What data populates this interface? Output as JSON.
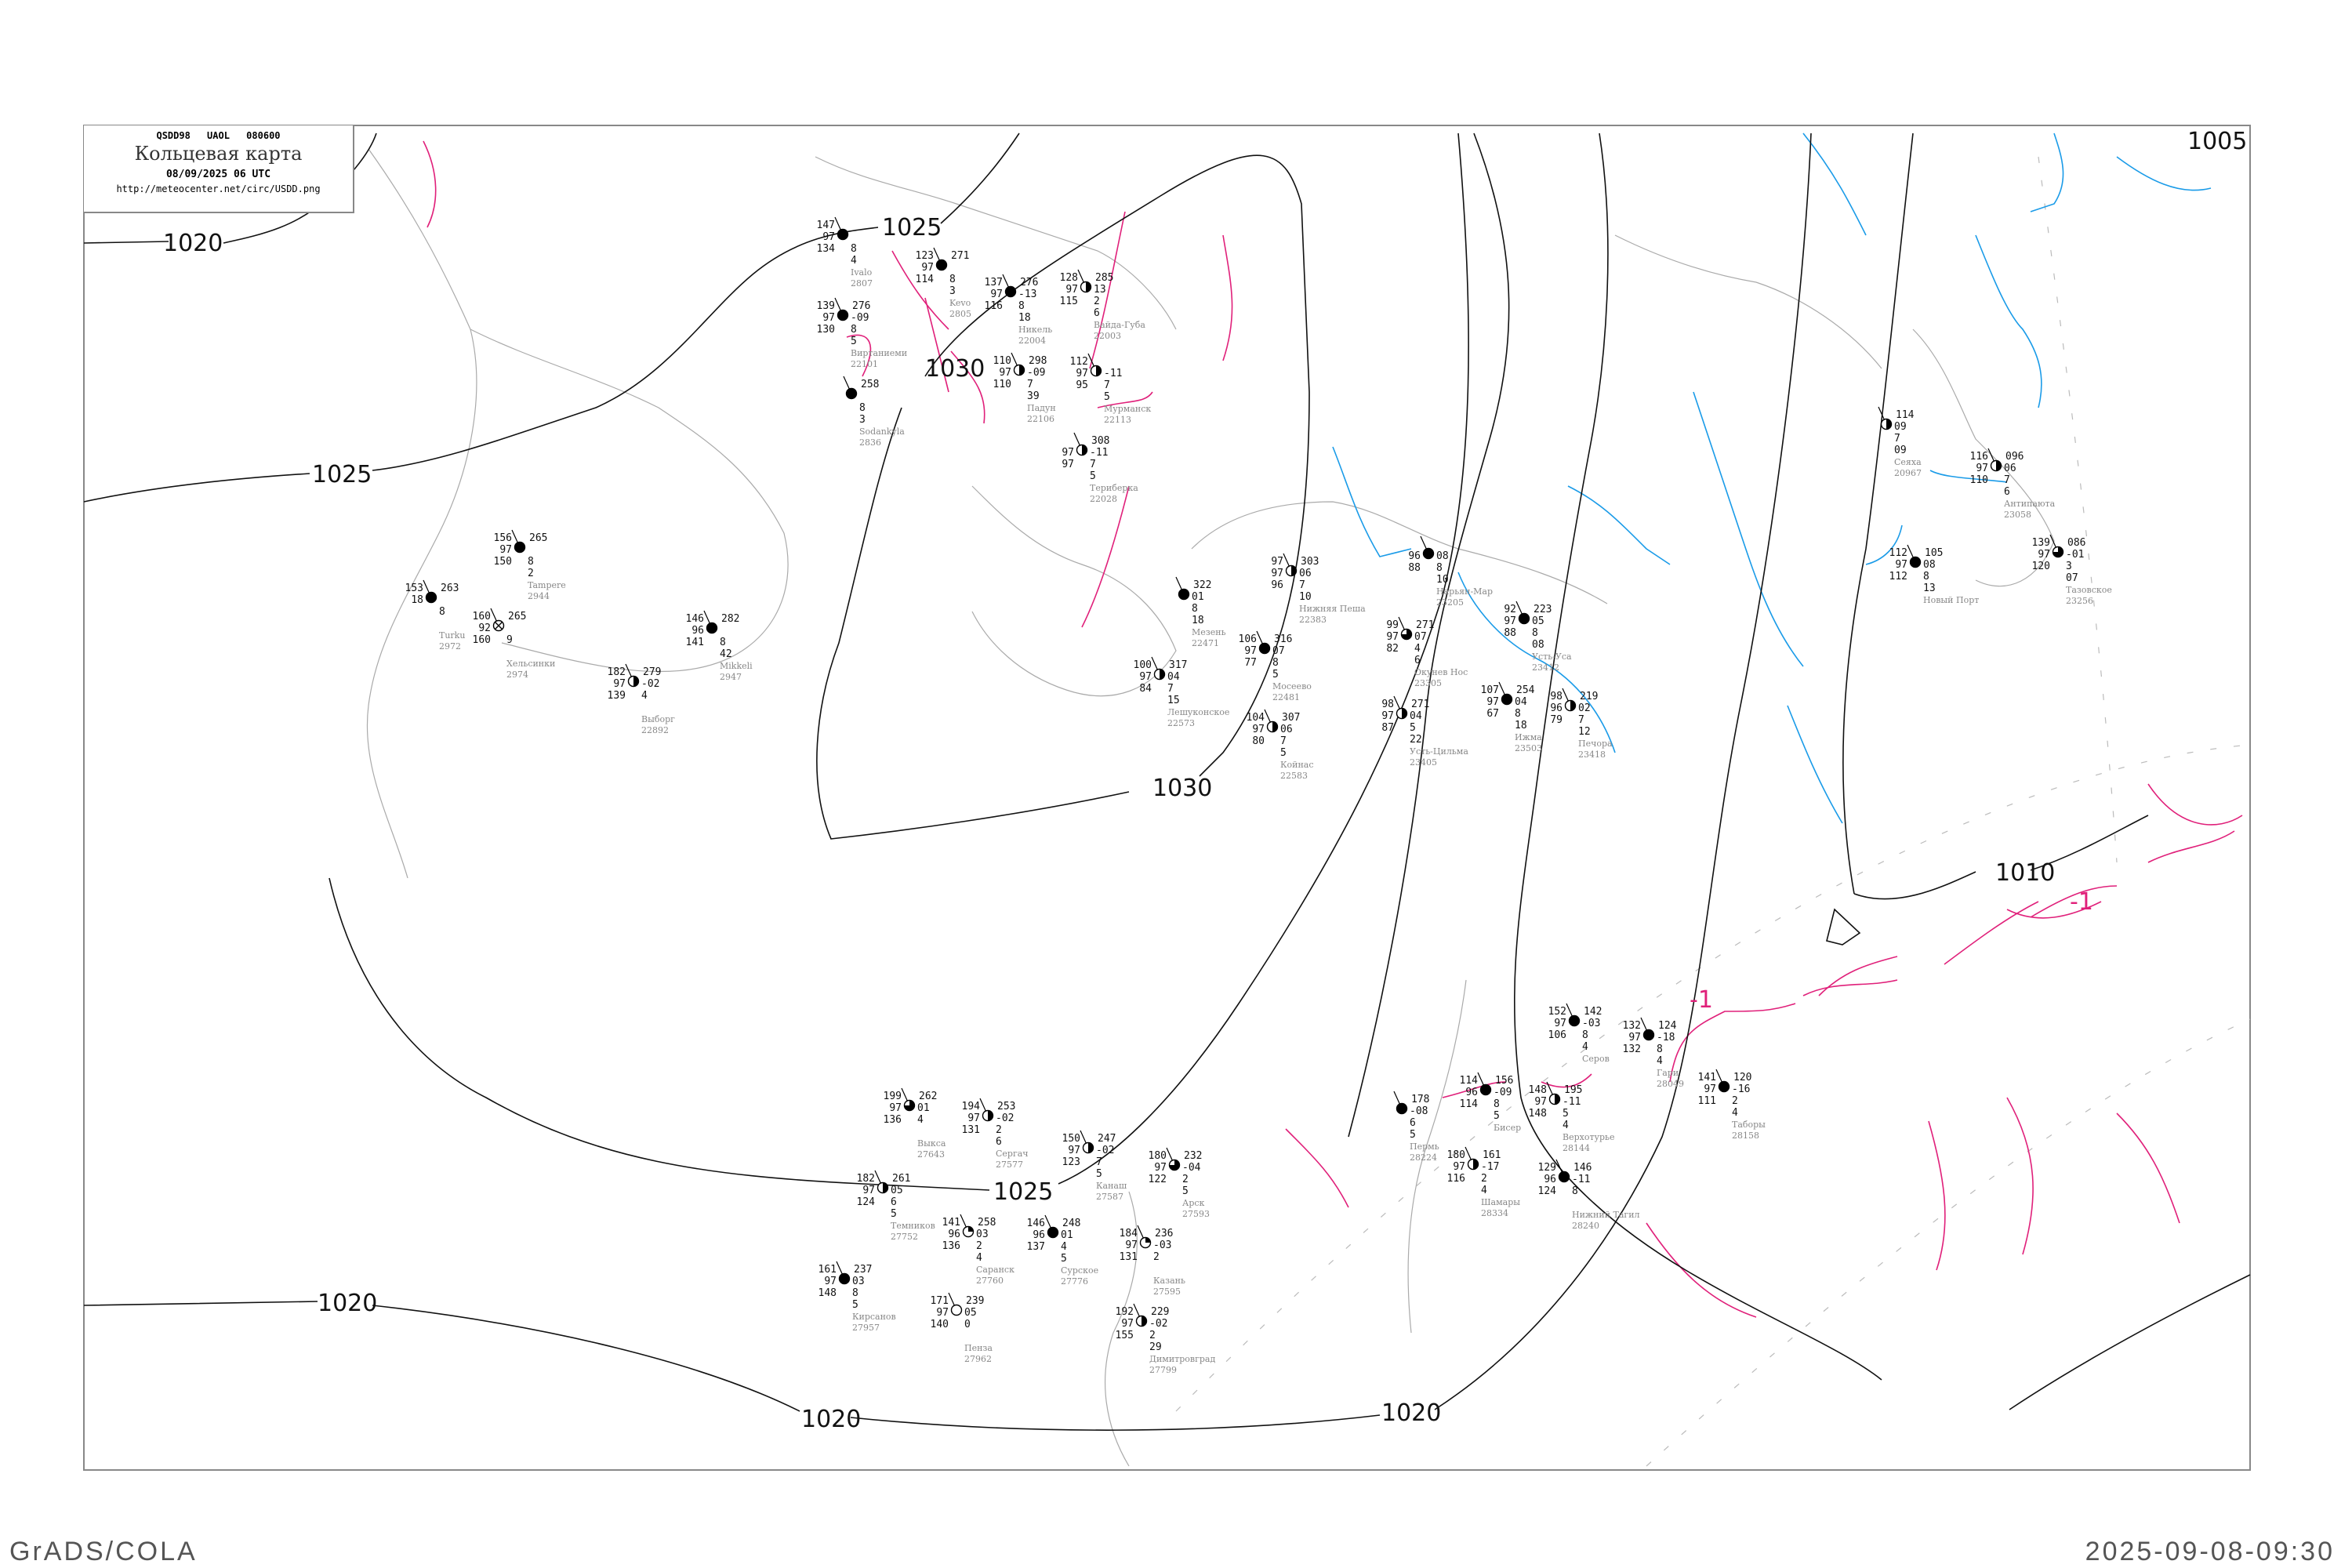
{
  "header": {
    "code_line": "QSDD98 UAOL 080600",
    "title": "Кольцевая карта",
    "date": "08/09/2025 06 UTC",
    "url": "http://meteocenter.net/circ/USDD.png"
  },
  "footer": {
    "left": "GrADS/COLA",
    "right": "2025-09-08-09:30"
  },
  "colors": {
    "isobar": "#111111",
    "isotherm": "#e0207a",
    "river": "#1a9be8",
    "coast": "#aaaaaa",
    "precip_marker": "#00c040",
    "fog_marker": "#ffff99"
  },
  "isobar_labels": [
    "1020",
    "1025",
    "1025",
    "1030",
    "1030",
    "1025",
    "1020",
    "1020",
    "1020",
    "1010",
    "1005"
  ],
  "isotherm_labels": [
    "-1",
    "-1"
  ],
  "stations": [
    {
      "name": "Kevo",
      "id": "2805",
      "cover": "full",
      "t": "123",
      "m": "97",
      "b": "114",
      "p": "271",
      "tend": "",
      "r1": "8",
      "r2": "3"
    },
    {
      "name": "Никель",
      "id": "22004",
      "cover": "full",
      "t": "137",
      "m": "97",
      "b": "116",
      "p": "276",
      "tend": "-13",
      "r1": "8",
      "r2": "18"
    },
    {
      "name": "Вайда-Губа",
      "id": "22003",
      "cover": "half",
      "t": "128",
      "m": "97",
      "b": "115",
      "p": "285",
      "tend": "13",
      "r1": "2",
      "r2": "6"
    },
    {
      "name": "Виртаниеми",
      "id": "22101",
      "cover": "full",
      "t": "139",
      "m": "97",
      "b": "130",
      "p": "276",
      "tend": "-09",
      "r1": "8",
      "r2": "5"
    },
    {
      "name": "Ivalo",
      "id": "2807",
      "cover": "full",
      "t": "147",
      "m": "97",
      "b": "134",
      "p": "",
      "tend": "",
      "r1": "8",
      "r2": "4"
    },
    {
      "name": "Sodankyla",
      "id": "2836",
      "cover": "full",
      "t": "",
      "m": "",
      "b": "",
      "p": "258",
      "tend": "",
      "r1": "8",
      "r2": "3"
    },
    {
      "name": "Падун",
      "id": "22106",
      "cover": "half",
      "t": "110",
      "m": "97",
      "b": "110",
      "p": "298",
      "tend": "-09",
      "r1": "7",
      "r2": "39"
    },
    {
      "name": "Мурманск",
      "id": "22113",
      "cover": "half",
      "t": "112",
      "m": "97",
      "b": "95",
      "p": "",
      "tend": "-11",
      "r1": "7",
      "r2": "5"
    },
    {
      "name": "Териберка",
      "id": "22028",
      "cover": "half",
      "t": "",
      "m": "97",
      "b": "97",
      "p": "308",
      "tend": "-11",
      "r1": "7",
      "r2": "5"
    },
    {
      "name": "Нижняя Пеша",
      "id": "22383",
      "cover": "half",
      "t": "97",
      "m": "97",
      "b": "96",
      "p": "303",
      "tend": "06",
      "r1": "7",
      "r2": "10"
    },
    {
      "name": "Мезень",
      "id": "22471",
      "cover": "full",
      "t": "",
      "m": "",
      "b": "",
      "p": "322",
      "tend": "01",
      "r1": "8",
      "r2": "18"
    },
    {
      "name": "Мосеево",
      "id": "22481",
      "cover": "full",
      "t": "106",
      "m": "97",
      "b": "77",
      "p": "316",
      "tend": "07",
      "r1": "8",
      "r2": "5"
    },
    {
      "name": "Лешуконское",
      "id": "22573",
      "cover": "half",
      "t": "100",
      "m": "97",
      "b": "84",
      "p": "317",
      "tend": "04",
      "r1": "7",
      "r2": "15"
    },
    {
      "name": "Койнас",
      "id": "22583",
      "cover": "half",
      "t": "104",
      "m": "97",
      "b": "80",
      "p": "307",
      "tend": "06",
      "r1": "7",
      "r2": "5"
    },
    {
      "name": "Нарьян-Мар",
      "id": "23205",
      "cover": "full",
      "t": "",
      "m": "96",
      "b": "88",
      "p": "",
      "tend": "08",
      "r1": "8",
      "r2": "10"
    },
    {
      "name": "Окунев Нос",
      "id": "23305",
      "cover": "three-quarter",
      "t": "99",
      "m": "97",
      "b": "82",
      "p": "271",
      "tend": "07",
      "r1": "4",
      "r2": "6"
    },
    {
      "name": "Усть-Цильма",
      "id": "23405",
      "cover": "half",
      "t": "98",
      "m": "97",
      "b": "87",
      "p": "271",
      "tend": "04",
      "r1": "5",
      "r2": "22"
    },
    {
      "name": "Ижма",
      "id": "23503",
      "cover": "full",
      "t": "107",
      "m": "97",
      "b": "67",
      "p": "254",
      "tend": "04",
      "r1": "8",
      "r2": "18"
    },
    {
      "name": "Усть-Уса",
      "id": "23412",
      "cover": "full",
      "t": "92",
      "m": "97",
      "b": "88",
      "p": "223",
      "tend": "05",
      "r1": "8",
      "r2": "08"
    },
    {
      "name": "Печора",
      "id": "23418",
      "cover": "half",
      "t": "98",
      "m": "96",
      "b": "79",
      "p": "219",
      "tend": "02",
      "r1": "7",
      "r2": "12"
    },
    {
      "name": "Саранск",
      "id": "27760",
      "cover": "quarter",
      "t": "141",
      "m": "96",
      "b": "136",
      "p": "258",
      "tend": "03",
      "r1": "2",
      "r2": "4"
    },
    {
      "name": "Сурское",
      "id": "27776",
      "cover": "full",
      "t": "146",
      "m": "96",
      "b": "137",
      "p": "248",
      "tend": "01",
      "r1": "4",
      "r2": "5"
    },
    {
      "name": "Сергач",
      "id": "27577",
      "cover": "half",
      "t": "194",
      "m": "97",
      "b": "131",
      "p": "253",
      "tend": "-02",
      "r1": "2",
      "r2": "6"
    },
    {
      "name": "Канаш",
      "id": "27587",
      "cover": "half",
      "t": "150",
      "m": "97",
      "b": "123",
      "p": "247",
      "tend": "-02",
      "r1": "7",
      "r2": "5"
    },
    {
      "name": "Арск",
      "id": "27593",
      "cover": "three-quarter",
      "t": "180",
      "m": "97",
      "b": "122",
      "p": "232",
      "tend": "-04",
      "r1": "2",
      "r2": "5"
    },
    {
      "name": "Казань",
      "id": "27595",
      "cover": "quarter",
      "t": "184",
      "m": "97",
      "b": "131",
      "p": "236",
      "tend": "-03",
      "r1": "2",
      "r2": ""
    },
    {
      "name": "Темников",
      "id": "27752",
      "cover": "half",
      "t": "182",
      "m": "97",
      "b": "124",
      "p": "261",
      "tend": "05",
      "r1": "6",
      "r2": "5"
    },
    {
      "name": "Пенза",
      "id": "27962",
      "cover": "empty",
      "t": "171",
      "m": "97",
      "b": "140",
      "p": "239",
      "tend": "05",
      "r1": "0",
      "r2": ""
    },
    {
      "name": "Кирсанов",
      "id": "27957",
      "cover": "full",
      "t": "161",
      "m": "97",
      "b": "148",
      "p": "237",
      "tend": "03",
      "r1": "8",
      "r2": "5"
    },
    {
      "name": "Димитровград",
      "id": "27799",
      "cover": "half",
      "t": "192",
      "m": "97",
      "b": "155",
      "p": "229",
      "tend": "-02",
      "r1": "2",
      "r2": "29"
    },
    {
      "name": "Выкса",
      "id": "27643",
      "cover": "three-quarter",
      "t": "199",
      "m": "97",
      "b": "136",
      "p": "262",
      "tend": "01",
      "r1": "4",
      "r2": ""
    },
    {
      "name": "Хельсинки",
      "id": "2974",
      "cover": "obscured",
      "t": "160",
      "m": "92",
      "b": "160",
      "p": "265",
      "tend": "",
      "r1": "9",
      "r2": ""
    },
    {
      "name": "Turku",
      "id": "2972",
      "cover": "full",
      "t": "153",
      "m": "18",
      "b": "",
      "p": "263",
      "tend": "",
      "r1": "8",
      "r2": ""
    },
    {
      "name": "Tampere",
      "id": "2944",
      "cover": "full",
      "t": "156",
      "m": "97",
      "b": "150",
      "p": "265",
      "tend": "",
      "r1": "8",
      "r2": "2"
    },
    {
      "name": "Выборг",
      "id": "22892",
      "cover": "half",
      "t": "182",
      "m": "97",
      "b": "139",
      "p": "279",
      "tend": "-02",
      "r1": "4",
      "r2": ""
    },
    {
      "name": "Mikkeli",
      "id": "2947",
      "cover": "full",
      "t": "146",
      "m": "96",
      "b": "141",
      "p": "282",
      "tend": "",
      "r1": "8",
      "r2": "42"
    },
    {
      "name": "Антипаюта",
      "id": "23058",
      "cover": "half",
      "t": "116",
      "m": "97",
      "b": "110",
      "p": "096",
      "tend": "06",
      "r1": "7",
      "r2": "6"
    },
    {
      "name": "Тазовское",
      "id": "23256",
      "cover": "three-quarter",
      "t": "139",
      "m": "97",
      "b": "120",
      "p": "086",
      "tend": "-01",
      "r1": "3",
      "r2": "07"
    },
    {
      "name": "Новый Порт",
      "id": "",
      "cover": "full",
      "t": "112",
      "m": "97",
      "b": "112",
      "p": "105",
      "tend": "08",
      "r1": "8",
      "r2": "13"
    },
    {
      "name": "Сеяха",
      "id": "20967",
      "cover": "half",
      "t": "",
      "m": "",
      "b": "",
      "p": "114",
      "tend": "09",
      "r1": "7",
      "r2": "09"
    },
    {
      "name": "Серов",
      "id": "",
      "cover": "full",
      "t": "152",
      "m": "97",
      "b": "106",
      "p": "142",
      "tend": "-03",
      "r1": "8",
      "r2": "4"
    },
    {
      "name": "Гари",
      "id": "28049",
      "cover": "full",
      "t": "132",
      "m": "97",
      "b": "132",
      "p": "124",
      "tend": "-18",
      "r1": "8",
      "r2": "4"
    },
    {
      "name": "Верхотурье",
      "id": "28144",
      "cover": "half",
      "t": "148",
      "m": "97",
      "b": "148",
      "p": "195",
      "tend": "-11",
      "r1": "5",
      "r2": "4"
    },
    {
      "name": "Бисер",
      "id": "",
      "cover": "full",
      "t": "114",
      "m": "96",
      "b": "114",
      "p": "156",
      "tend": "-09",
      "r1": "8",
      "r2": "5"
    },
    {
      "name": "Нижний Тагил",
      "id": "28240",
      "cover": "full",
      "t": "129",
      "m": "96",
      "b": "124",
      "p": "146",
      "tend": "-11",
      "r1": "8",
      "r2": ""
    },
    {
      "name": "Таборы",
      "id": "28158",
      "cover": "full",
      "t": "141",
      "m": "97",
      "b": "111",
      "p": "120",
      "tend": "-16",
      "r1": "2",
      "r2": "4"
    },
    {
      "name": "Шамары",
      "id": "28334",
      "cover": "half",
      "t": "180",
      "m": "97",
      "b": "116",
      "p": "161",
      "tend": "-17",
      "r1": "2",
      "r2": "4"
    },
    {
      "name": "Пермь",
      "id": "28224",
      "cover": "full",
      "t": "",
      "m": "",
      "b": "",
      "p": "178",
      "tend": "-08",
      "r1": "6",
      "r2": "5"
    }
  ]
}
